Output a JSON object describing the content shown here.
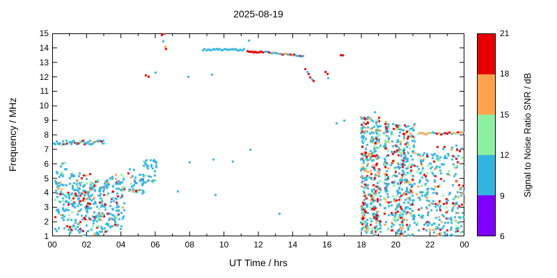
{
  "chart_data": {
    "type": "scatter",
    "title": "2025-08-19",
    "xlabel": "UT Time / hrs",
    "ylabel": "Frequency / MHz",
    "xlim": [
      0,
      24
    ],
    "ylim": [
      1,
      15
    ],
    "grid": false,
    "legend": "none",
    "xtick_values": [
      0,
      2,
      4,
      6,
      8,
      10,
      12,
      14,
      16,
      18,
      20,
      22,
      24
    ],
    "xtick_labels": [
      "00",
      "02",
      "04",
      "06",
      "08",
      "10",
      "12",
      "14",
      "16",
      "18",
      "20",
      "22",
      "00"
    ],
    "xminor_values": [
      1,
      3,
      5,
      7,
      9,
      11,
      13,
      15,
      17,
      19,
      21,
      23
    ],
    "ytick_values": [
      1,
      2,
      3,
      4,
      5,
      6,
      7,
      8,
      9,
      10,
      11,
      12,
      13,
      14,
      15
    ],
    "ytick_labels": [
      "1",
      "2",
      "3",
      "4",
      "5",
      "6",
      "7",
      "8",
      "9",
      "10",
      "11",
      "12",
      "13",
      "14",
      "15"
    ],
    "colorbar": {
      "label": "Signal to Noise Ratio SNR / dB",
      "tick_values": [
        6,
        9,
        12,
        15,
        18,
        21
      ],
      "bands": [
        {
          "key": "p",
          "min": 6,
          "max": 9,
          "color": "#7f00ff"
        },
        {
          "key": "c",
          "min": 9,
          "max": 12,
          "color": "#33b3e0"
        },
        {
          "key": "g",
          "min": 12,
          "max": 15,
          "color": "#8df0a0"
        },
        {
          "key": "o",
          "min": 15,
          "max": 18,
          "color": "#ffa24d"
        },
        {
          "key": "r",
          "min": 18,
          "max": 21,
          "color": "#e60000"
        }
      ]
    },
    "snr_band_mid_values": {
      "p": 7.5,
      "c": 10.5,
      "g": 13.5,
      "o": 16.5,
      "r": 19.5
    },
    "clusters": [
      {
        "t": [
          0.15,
          0.9
        ],
        "f": [
          1.3,
          6.1
        ],
        "n": 70,
        "mix": {
          "c": 0.8,
          "g": 0.08,
          "o": 0.05,
          "r": 0.07
        }
      },
      {
        "t": [
          0.9,
          2.2
        ],
        "f": [
          1.1,
          5.4
        ],
        "n": 150,
        "mix": {
          "c": 0.66,
          "g": 0.12,
          "o": 0.08,
          "r": 0.14
        }
      },
      {
        "t": [
          2.2,
          3.3
        ],
        "f": [
          1.0,
          4.9
        ],
        "n": 130,
        "mix": {
          "c": 0.64,
          "g": 0.12,
          "o": 0.1,
          "r": 0.14
        }
      },
      {
        "t": [
          3.3,
          4.2
        ],
        "f": [
          1.5,
          5.3
        ],
        "n": 85,
        "mix": {
          "c": 0.7,
          "g": 0.12,
          "o": 0.08,
          "r": 0.1
        }
      },
      {
        "t": [
          4.4,
          5.3
        ],
        "f": [
          3.9,
          5.7
        ],
        "n": 45,
        "mix": {
          "c": 0.75,
          "g": 0.15,
          "o": 0.05,
          "r": 0.05
        }
      },
      {
        "t": [
          5.3,
          6.05
        ],
        "f": [
          4.6,
          6.35
        ],
        "n": 35,
        "mix": {
          "c": 0.8,
          "g": 0.12,
          "o": 0.04,
          "r": 0.04
        }
      },
      {
        "t": [
          17.95,
          18.4
        ],
        "f": [
          1.2,
          9.3
        ],
        "n": 170,
        "mix": {
          "c": 0.52,
          "g": 0.14,
          "o": 0.13,
          "r": 0.21
        }
      },
      {
        "t": [
          18.5,
          19.1
        ],
        "f": [
          1.0,
          9.2
        ],
        "n": 200,
        "mix": {
          "c": 0.55,
          "g": 0.14,
          "o": 0.12,
          "r": 0.19
        }
      },
      {
        "t": [
          19.3,
          19.6
        ],
        "f": [
          1.5,
          8.9
        ],
        "n": 90,
        "mix": {
          "c": 0.55,
          "g": 0.15,
          "o": 0.12,
          "r": 0.18
        }
      },
      {
        "t": [
          19.7,
          21.1
        ],
        "f": [
          1.0,
          8.8
        ],
        "n": 320,
        "mix": {
          "c": 0.56,
          "g": 0.14,
          "o": 0.12,
          "r": 0.18
        }
      },
      {
        "t": [
          21.2,
          22.4
        ],
        "f": [
          1.2,
          6.8
        ],
        "n": 130,
        "mix": {
          "c": 0.66,
          "g": 0.12,
          "o": 0.08,
          "r": 0.14
        }
      },
      {
        "t": [
          22.4,
          24.0
        ],
        "f": [
          1.0,
          7.3
        ],
        "n": 150,
        "mix": {
          "c": 0.66,
          "g": 0.12,
          "o": 0.08,
          "r": 0.14
        }
      }
    ],
    "tracks": [
      {
        "t": [
          0.1,
          3.1
        ],
        "f": [
          7.45,
          7.5
        ],
        "step": 0.07,
        "jitter": 0.14,
        "mix": {
          "c": 0.82,
          "g": 0.06,
          "o": 0.04,
          "r": 0.08
        }
      },
      {
        "t": [
          8.75,
          11.2
        ],
        "f": [
          13.9,
          13.9
        ],
        "step": 0.1,
        "jitter": 0.05,
        "mix": {
          "c": 1.0
        }
      },
      {
        "t": [
          11.35,
          12.3
        ],
        "f": [
          13.78,
          13.72
        ],
        "step": 0.09,
        "jitter": 0.04,
        "mix": {
          "r": 0.85,
          "o": 0.15
        }
      },
      {
        "t": [
          12.35,
          14.65
        ],
        "f": [
          13.72,
          13.45
        ],
        "step": 0.09,
        "jitter": 0.05,
        "mix": {
          "c": 0.5,
          "r": 0.27,
          "o": 0.23
        }
      },
      {
        "t": [
          21.3,
          24.0
        ],
        "f": [
          8.1,
          8.15
        ],
        "step": 0.12,
        "jitter": 0.07,
        "mix": {
          "o": 0.38,
          "r": 0.27,
          "g": 0.15,
          "c": 0.2
        }
      }
    ],
    "singles": [
      [
        5.45,
        12.1,
        "r"
      ],
      [
        5.6,
        12.05,
        "r"
      ],
      [
        6.0,
        12.3,
        "c"
      ],
      [
        6.35,
        14.9,
        "r"
      ],
      [
        6.45,
        14.45,
        "c"
      ],
      [
        6.5,
        15.0,
        "r"
      ],
      [
        6.55,
        14.1,
        "o"
      ],
      [
        6.6,
        13.95,
        "r"
      ],
      [
        7.9,
        12.05,
        "c"
      ],
      [
        9.3,
        12.15,
        "c"
      ],
      [
        7.3,
        4.1,
        "c"
      ],
      [
        9.5,
        3.9,
        "c"
      ],
      [
        8.0,
        6.15,
        "c"
      ],
      [
        9.35,
        6.3,
        "c"
      ],
      [
        10.5,
        6.2,
        "c"
      ],
      [
        11.5,
        7.0,
        "c"
      ],
      [
        13.2,
        2.6,
        "c"
      ],
      [
        11.45,
        14.5,
        "c"
      ],
      [
        14.7,
        12.55,
        "r"
      ],
      [
        14.82,
        12.35,
        "c"
      ],
      [
        14.92,
        12.2,
        "r"
      ],
      [
        15.02,
        12.0,
        "r"
      ],
      [
        15.12,
        11.85,
        "c"
      ],
      [
        15.2,
        11.75,
        "r"
      ],
      [
        15.9,
        12.35,
        "r"
      ],
      [
        16.0,
        12.2,
        "r"
      ],
      [
        16.05,
        11.95,
        "c"
      ],
      [
        16.8,
        13.5,
        "r"
      ],
      [
        16.9,
        13.52,
        "r"
      ],
      [
        16.55,
        8.8,
        "c"
      ],
      [
        17.0,
        9.0,
        "c"
      ],
      [
        18.75,
        9.6,
        "c"
      ]
    ]
  }
}
